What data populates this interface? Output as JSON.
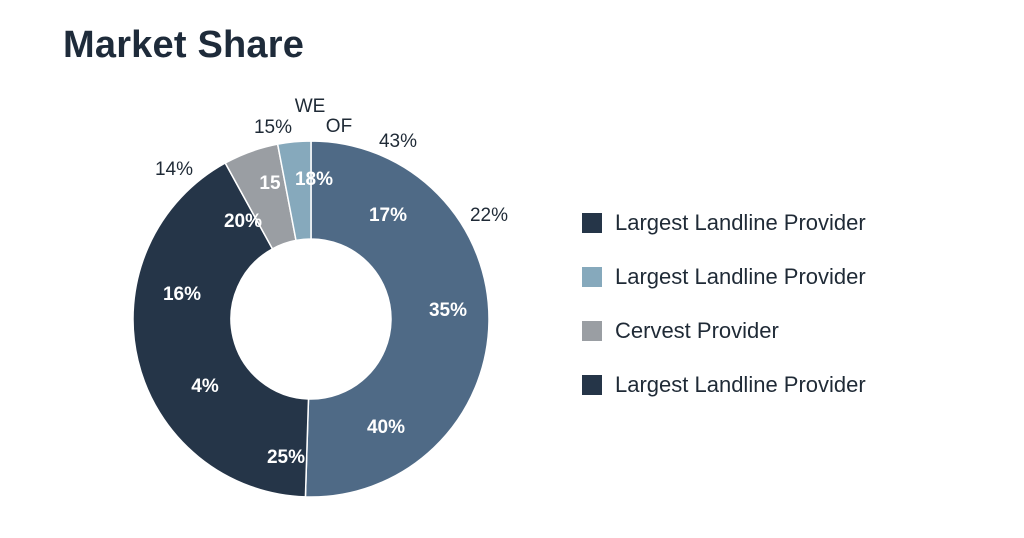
{
  "page_title": "Market Share",
  "colors": {
    "dark_navy": "#253548",
    "slate_blue": "#4f6a86",
    "light_blue": "#86a9bc",
    "gray": "#9a9ea3",
    "label_white": "#ffffff",
    "label_dark": "#1f2a36"
  },
  "chart_data": {
    "type": "pie",
    "style": "donut",
    "slices": [
      {
        "value": 50.5,
        "color": "#4f6a86"
      },
      {
        "value": 41.5,
        "color": "#253548"
      },
      {
        "value": 5.0,
        "color": "#9a9ea3"
      },
      {
        "value": 3.0,
        "color": "#86a9bc"
      }
    ],
    "inner_labels": [
      "17%",
      "35%",
      "40%",
      "25%",
      "4%",
      "16%",
      "20%",
      "15",
      "18%"
    ],
    "outer_labels": [
      "43%",
      "22%",
      "14%",
      "15%",
      "WE",
      "OF"
    ],
    "legend": [
      {
        "label": "Largest Landline Provider",
        "color": "#253548"
      },
      {
        "label": "Largest Landline Provider",
        "color": "#86a9bc"
      },
      {
        "label": "Cervest Provider",
        "color": "#9a9ea3"
      },
      {
        "label": "Largest Landline Provider",
        "color": "#253548"
      }
    ],
    "legend_position": "right"
  }
}
